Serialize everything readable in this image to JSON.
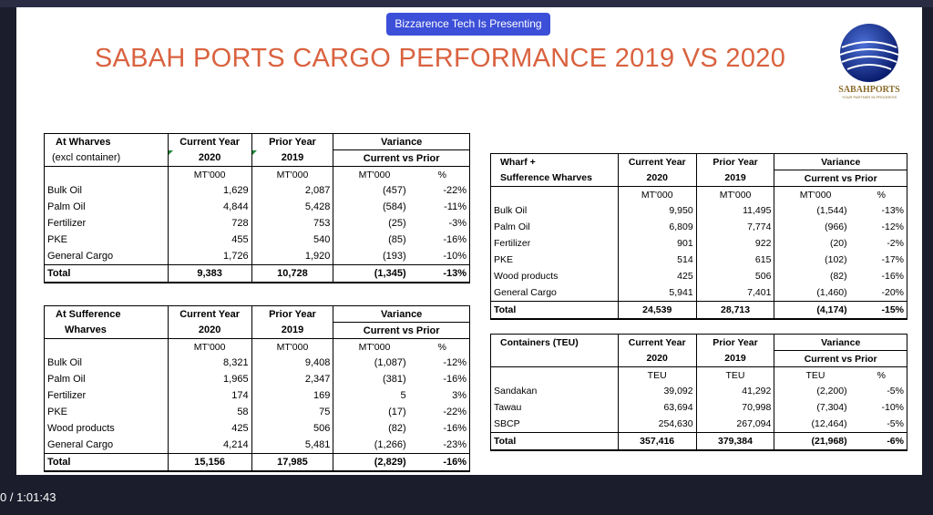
{
  "banner": "Bizzarence Tech Is Presenting",
  "title": "SABAH PORTS CARGO PERFORMANCE 2019 VS 2020",
  "logo": {
    "text": "SABAHPORTS",
    "subtext": "YOUR PARTNER IN PROGRESS"
  },
  "timestamp": "0 / 1:01:43",
  "colors": {
    "title": "#d9623f",
    "banner": "#3c4fd8"
  },
  "headers": {
    "current_year": "Current Year",
    "prior_year": "Prior Year",
    "variance": "Variance",
    "cvp": "Current vs Prior",
    "y2020": "2020",
    "y2019": "2019",
    "mt": "MT'000",
    "teu": "TEU",
    "pct": "%"
  },
  "tables": {
    "wharves": {
      "h1": "At Wharves",
      "h2": "(excl container)",
      "rows": [
        [
          "Bulk Oil",
          "1,629",
          "2,087",
          "(457)",
          "-22%"
        ],
        [
          "Palm Oil",
          "4,844",
          "5,428",
          "(584)",
          "-11%"
        ],
        [
          "Fertilizer",
          "728",
          "753",
          "(25)",
          "-3%"
        ],
        [
          "PKE",
          "455",
          "540",
          "(85)",
          "-16%"
        ],
        [
          "General Cargo",
          "1,726",
          "1,920",
          "(193)",
          "-10%"
        ]
      ],
      "total": [
        "Total",
        "9,383",
        "10,728",
        "(1,345)",
        "-13%"
      ]
    },
    "sufference": {
      "h1": "At Sufference",
      "h2": "Wharves",
      "rows": [
        [
          "Bulk Oil",
          "8,321",
          "9,408",
          "(1,087)",
          "-12%"
        ],
        [
          "Palm Oil",
          "1,965",
          "2,347",
          "(381)",
          "-16%"
        ],
        [
          "Fertilizer",
          "174",
          "169",
          "5",
          "3%"
        ],
        [
          "PKE",
          "58",
          "75",
          "(17)",
          "-22%"
        ],
        [
          "Wood products",
          "425",
          "506",
          "(82)",
          "-16%"
        ],
        [
          "General Cargo",
          "4,214",
          "5,481",
          "(1,266)",
          "-23%"
        ]
      ],
      "total": [
        "Total",
        "15,156",
        "17,985",
        "(2,829)",
        "-16%"
      ]
    },
    "combined": {
      "h1": "Wharf +",
      "h2": "Sufference Wharves",
      "rows": [
        [
          "Bulk Oil",
          "9,950",
          "11,495",
          "(1,544)",
          "-13%"
        ],
        [
          "Palm Oil",
          "6,809",
          "7,774",
          "(966)",
          "-12%"
        ],
        [
          "Fertilizer",
          "901",
          "922",
          "(20)",
          "-2%"
        ],
        [
          "PKE",
          "514",
          "615",
          "(102)",
          "-17%"
        ],
        [
          "Wood products",
          "425",
          "506",
          "(82)",
          "-16%"
        ],
        [
          "General Cargo",
          "5,941",
          "7,401",
          "(1,460)",
          "-20%"
        ]
      ],
      "total": [
        "Total",
        "24,539",
        "28,713",
        "(4,174)",
        "-15%"
      ]
    },
    "containers": {
      "h1": "Containers (TEU)",
      "h2": "",
      "rows": [
        [
          "Sandakan",
          "39,092",
          "41,292",
          "(2,200)",
          "-5%"
        ],
        [
          "Tawau",
          "63,694",
          "70,998",
          "(7,304)",
          "-10%"
        ],
        [
          "SBCP",
          "254,630",
          "267,094",
          "(12,464)",
          "-5%"
        ]
      ],
      "total": [
        "Total",
        "357,416",
        "379,384",
        "(21,968)",
        "-6%"
      ]
    }
  }
}
